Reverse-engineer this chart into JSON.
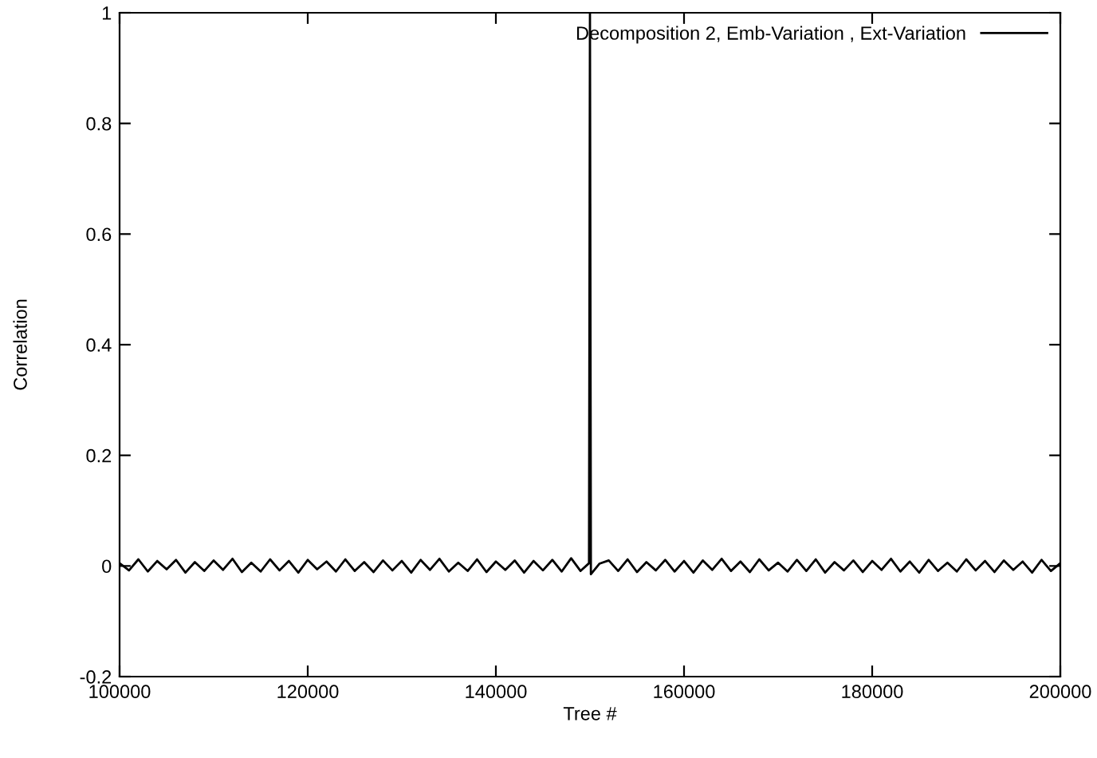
{
  "chart_data": {
    "type": "line",
    "xlabel": "Tree #",
    "ylabel": "Correlation",
    "xlim": [
      100000,
      200000
    ],
    "xticks": [
      100000,
      120000,
      140000,
      160000,
      180000,
      200000
    ],
    "ylim": [
      -0.2,
      1
    ],
    "yticks": [
      -0.2,
      0,
      0.2,
      0.4,
      0.6,
      0.8,
      1
    ],
    "grid": false,
    "legend": "top right",
    "marker": "none",
    "line_style": "solid",
    "series": [
      {
        "name": "Decomposition 2, Emb-Variation , Ext-Variation",
        "color": "#000000",
        "x": [
          100000,
          101000,
          102000,
          103000,
          104000,
          105000,
          106000,
          107000,
          108000,
          109000,
          110000,
          111000,
          112000,
          113000,
          114000,
          115000,
          116000,
          117000,
          118000,
          119000,
          120000,
          121000,
          122000,
          123000,
          124000,
          125000,
          126000,
          127000,
          128000,
          129000,
          130000,
          131000,
          132000,
          133000,
          134000,
          135000,
          136000,
          137000,
          138000,
          139000,
          140000,
          141000,
          142000,
          143000,
          144000,
          145000,
          146000,
          147000,
          148000,
          149000,
          149900,
          150000,
          150100,
          151000,
          152000,
          153000,
          154000,
          155000,
          156000,
          157000,
          158000,
          159000,
          160000,
          161000,
          162000,
          163000,
          164000,
          165000,
          166000,
          167000,
          168000,
          169000,
          170000,
          171000,
          172000,
          173000,
          174000,
          175000,
          176000,
          177000,
          178000,
          179000,
          180000,
          181000,
          182000,
          183000,
          184000,
          185000,
          186000,
          187000,
          188000,
          189000,
          190000,
          191000,
          192000,
          193000,
          194000,
          195000,
          196000,
          197000,
          198000,
          199000,
          200000
        ],
        "values": [
          0.005,
          -0.008,
          0.012,
          -0.01,
          0.009,
          -0.006,
          0.011,
          -0.012,
          0.007,
          -0.009,
          0.01,
          -0.007,
          0.013,
          -0.011,
          0.006,
          -0.01,
          0.012,
          -0.008,
          0.009,
          -0.012,
          0.011,
          -0.006,
          0.008,
          -0.01,
          0.012,
          -0.009,
          0.007,
          -0.011,
          0.01,
          -0.008,
          0.009,
          -0.012,
          0.011,
          -0.007,
          0.013,
          -0.01,
          0.006,
          -0.009,
          0.012,
          -0.011,
          0.008,
          -0.007,
          0.01,
          -0.012,
          0.009,
          -0.008,
          0.011,
          -0.01,
          0.014,
          -0.009,
          0.005,
          1,
          -0.015,
          0.004,
          0.01,
          -0.009,
          0.012,
          -0.011,
          0.007,
          -0.008,
          0.011,
          -0.01,
          0.009,
          -0.012,
          0.01,
          -0.007,
          0.013,
          -0.009,
          0.008,
          -0.011,
          0.012,
          -0.008,
          0.006,
          -0.01,
          0.011,
          -0.009,
          0.012,
          -0.012,
          0.007,
          -0.008,
          0.01,
          -0.011,
          0.009,
          -0.007,
          0.013,
          -0.01,
          0.008,
          -0.012,
          0.011,
          -0.009,
          0.006,
          -0.01,
          0.012,
          -0.008,
          0.009,
          -0.011,
          0.01,
          -0.007,
          0.008,
          -0.012,
          0.011,
          -0.009,
          0.005
        ]
      }
    ]
  }
}
